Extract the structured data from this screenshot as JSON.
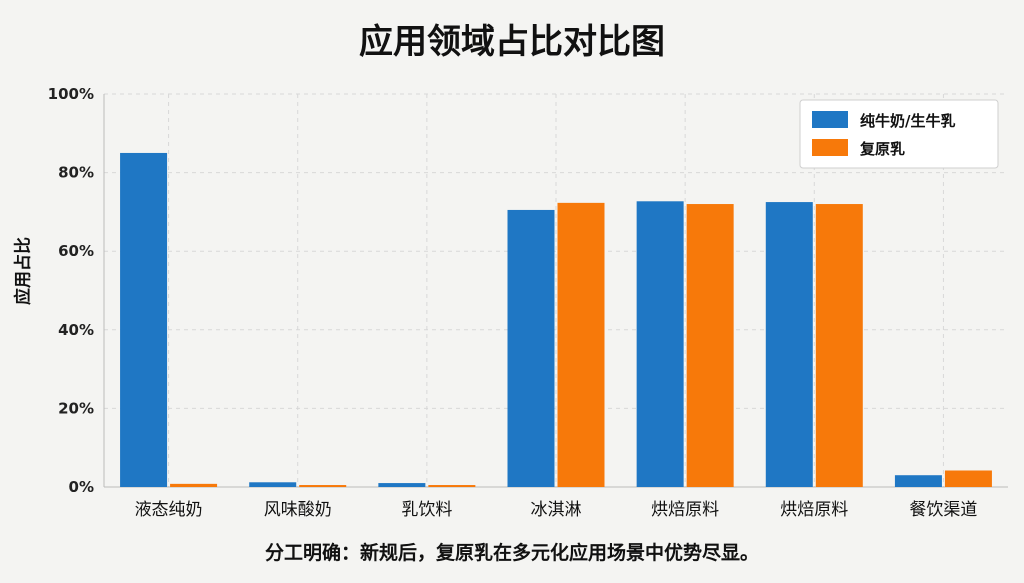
{
  "chart_data": {
    "type": "bar",
    "title": "应用领域占比对比图",
    "ylabel": "应用占比",
    "xlabel": "",
    "caption": "分工明确：新规后，复原乳在多元化应用场景中优势尽显。",
    "categories": [
      "液态纯奶",
      "风味酸奶",
      "乳饮料",
      "冰淇淋",
      "烘焙原料",
      "烘焙原料",
      "餐饮渠道"
    ],
    "series": [
      {
        "name": "纯牛奶/生牛乳",
        "color": "#1f77c4",
        "values": [
          85,
          1.2,
          1.0,
          70.5,
          72.7,
          72.5,
          3.0
        ]
      },
      {
        "name": "复原乳",
        "color": "#f7790a",
        "values": [
          0.8,
          0.5,
          0.5,
          72.3,
          72.0,
          72.0,
          4.2
        ]
      }
    ],
    "ylim": [
      0,
      100
    ],
    "yticks": [
      "0%",
      "20%",
      "40%",
      "60%",
      "80%",
      "100%"
    ],
    "grid": true,
    "legend_position": "top-right"
  }
}
